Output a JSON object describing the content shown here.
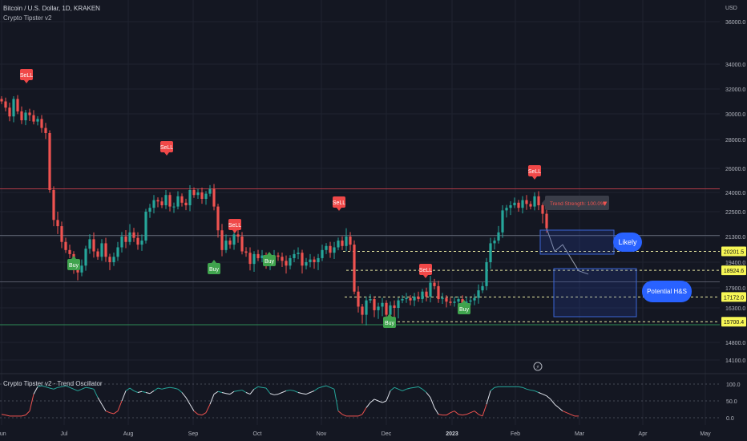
{
  "header": {
    "symbol_line": "Bitcoin / U.S. Dollar, 1D, KRAKEN",
    "indicator": "Crypto Tipster v2"
  },
  "oscillator": {
    "title": "Crypto Tipster v2 - Trend Oscillator",
    "ticks": [
      "100.0",
      "50.0",
      "0.0"
    ],
    "tick_values": [
      100,
      50,
      0
    ],
    "values": [
      10,
      8,
      5,
      5,
      5,
      5,
      8,
      20,
      70,
      92,
      95,
      92,
      88,
      85,
      90,
      92,
      95,
      90,
      85,
      80,
      85,
      90,
      88,
      85,
      60,
      40,
      20,
      15,
      12,
      20,
      50,
      80,
      88,
      80,
      75,
      78,
      75,
      72,
      80,
      88,
      85,
      88,
      90,
      88,
      85,
      75,
      60,
      40,
      20,
      10,
      8,
      15,
      40,
      70,
      78,
      75,
      72,
      70,
      78,
      80,
      82,
      75,
      70,
      85,
      92,
      90,
      88,
      72,
      68,
      70,
      75,
      80,
      82,
      80,
      75,
      72,
      70,
      75,
      80,
      88,
      92,
      95,
      90,
      85,
      20,
      10,
      5,
      5,
      5,
      5,
      10,
      30,
      45,
      55,
      50,
      45,
      50,
      80,
      90,
      85,
      80,
      85,
      88,
      90,
      92,
      85,
      75,
      60,
      30,
      10,
      8,
      8,
      15,
      20,
      10,
      8,
      10,
      15,
      20,
      10,
      5,
      40,
      80,
      90,
      92,
      92,
      92,
      92,
      92,
      92,
      90,
      85,
      82,
      80,
      75,
      70,
      65,
      55,
      40,
      30,
      20,
      15,
      10,
      5,
      5
    ]
  },
  "chart_data": {
    "type": "candlestick",
    "title": "Bitcoin / U.S. Dollar, 1D, KRAKEN",
    "currency": "USD",
    "x_labels": [
      "Jun",
      "Jul",
      "Aug",
      "Sep",
      "Oct",
      "Nov",
      "Dec",
      "2023",
      "Feb",
      "Mar",
      "Apr",
      "May"
    ],
    "y_ticks": [
      36000,
      34000,
      32000,
      30000,
      28000,
      26000,
      24000,
      22500,
      21300,
      19400,
      17900,
      16300,
      14800,
      14100
    ],
    "y_tick_labels": [
      "36000.0",
      "34000.0",
      "32000.0",
      "30000.0",
      "28000.0",
      "26000.0",
      "24000.0",
      "22500.0",
      "21300.0",
      "19400.0",
      "17900.0",
      "16300.0",
      "14800.0",
      "14100.0"
    ],
    "price_levels": [
      {
        "label": "20201.5",
        "value": 20201.5
      },
      {
        "label": "18924.6",
        "value": 18924.6
      },
      {
        "label": "17172.0",
        "value": 17172.0
      },
      {
        "label": "15700.4",
        "value": 15700.4
      }
    ],
    "close_path": [
      31000,
      30500,
      29800,
      31200,
      30200,
      29500,
      30100,
      29900,
      29400,
      29600,
      28900,
      28500,
      24200,
      22100,
      21800,
      20900,
      20300,
      20000,
      19100,
      18800,
      19200,
      20400,
      21100,
      20200,
      19800,
      20800,
      19800,
      19400,
      19800,
      20500,
      21300,
      20900,
      21500,
      21200,
      20700,
      21000,
      22500,
      22800,
      23400,
      23300,
      23000,
      23800,
      22900,
      22900,
      23700,
      23200,
      23000,
      24200,
      23800,
      24000,
      23500,
      23900,
      24300,
      22900,
      21600,
      20300,
      21000,
      20700,
      21400,
      21300,
      20200,
      20100,
      19300,
      20000,
      19700,
      19900,
      19400,
      19700,
      19900,
      19800,
      19500,
      19200,
      19700,
      20000,
      20100,
      19200,
      19400,
      19600,
      19400,
      19700,
      20300,
      20600,
      20100,
      20500,
      21000,
      20600,
      21300,
      20700,
      17600,
      16400,
      16000,
      16900,
      17000,
      16200,
      16400,
      16700,
      16000,
      16500,
      16300,
      16900,
      17000,
      17100,
      16900,
      17200,
      17000,
      17600,
      17200,
      18200,
      18000,
      17000,
      17100,
      16800,
      16700,
      16800,
      17000,
      16700,
      16800,
      16900,
      17100,
      17700,
      18000,
      19400,
      20800,
      21000,
      21500,
      22600,
      22800,
      23000,
      23200,
      22800,
      23400,
      23100,
      22900,
      23700,
      23000,
      22400,
      21700
    ],
    "signals": [
      {
        "type": "Sell",
        "label": "SeLL"
      },
      {
        "type": "Sell",
        "label": "SeLL"
      },
      {
        "type": "Buy",
        "label": "Buy"
      },
      {
        "type": "Sell",
        "label": "SeLL"
      },
      {
        "type": "Buy",
        "label": "Buy"
      },
      {
        "type": "Buy",
        "label": "Buy"
      },
      {
        "type": "Sell",
        "label": "SeLL"
      },
      {
        "type": "Buy",
        "label": "Buy"
      },
      {
        "type": "Sell",
        "label": "SeLL"
      },
      {
        "type": "Buy",
        "label": "Buy"
      },
      {
        "type": "Sell",
        "label": "SeLL"
      }
    ],
    "annotations": {
      "trend_strength": "Trend Strength: 100.0%",
      "trend_strength_arrow": "▼",
      "likely": "Likely",
      "potential": "Potential H&S"
    }
  },
  "colors": {
    "background": "#141722",
    "up": "#26a69a",
    "down": "#ef5350",
    "grid": "#1f2330",
    "price_tag": "#f7f756",
    "sell": "#f04848",
    "buy": "#3fa34d",
    "bubble": "#2962ff",
    "box_border": "#3a65d6",
    "red_line": "#b23a48",
    "green_line": "#2e8b57",
    "gray_line": "#6b7080"
  }
}
